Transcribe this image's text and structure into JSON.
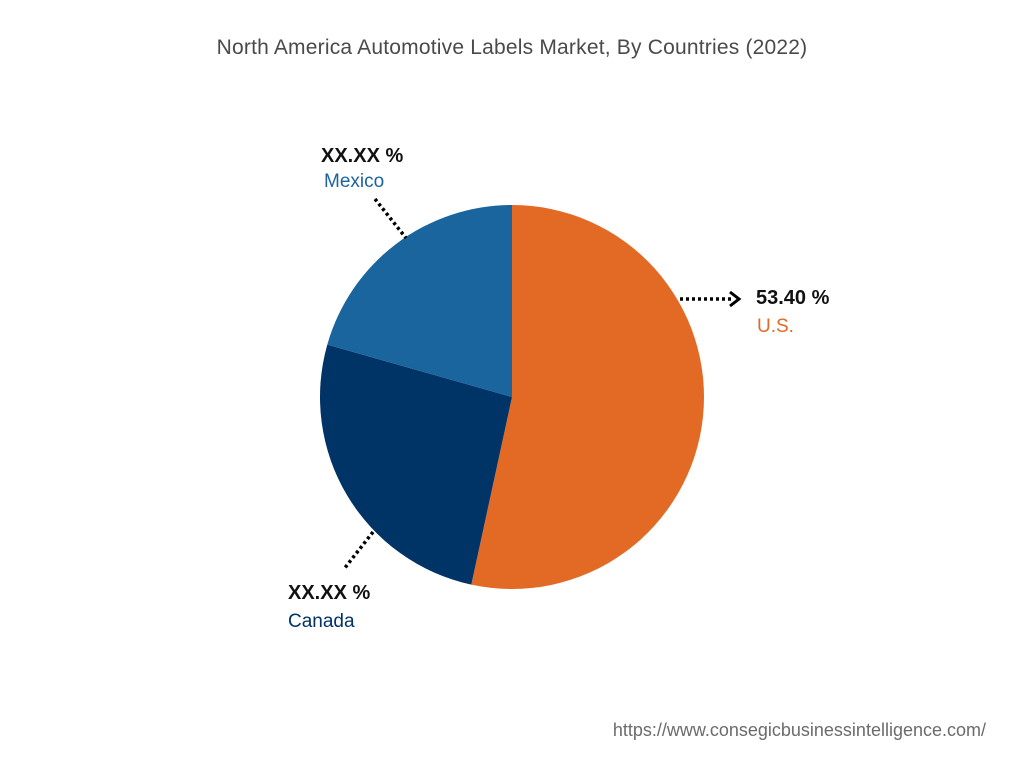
{
  "title": "North America Automotive Labels Market, By Countries (2022)",
  "source_url": "https://www.consegicbusinessintelligence.com/",
  "colors": {
    "us": "#E36A25",
    "canada": "#003366",
    "mexico": "#1A659E",
    "title_text": "#4A4A4A",
    "url_text": "#6B6B6B"
  },
  "chart_data": {
    "type": "pie",
    "title": "North America Automotive Labels Market, By Countries (2022)",
    "slices": [
      {
        "name": "U.S.",
        "value": 53.4,
        "label": "53.40 %",
        "color": "#E36A25"
      },
      {
        "name": "Canada",
        "value": 26.0,
        "label": "XX.XX %",
        "color": "#003366"
      },
      {
        "name": "Mexico",
        "value": 20.6,
        "label": "XX.XX %",
        "color": "#1A659E"
      }
    ],
    "start_angle": "top, clockwise",
    "legend": "none (labels with dotted leader lines)"
  }
}
